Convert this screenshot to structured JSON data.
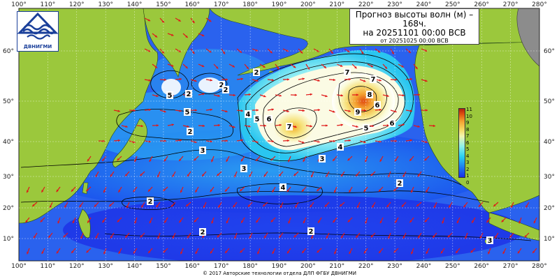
{
  "title": {
    "line1": "Прогноз высоты волн (м) –",
    "line2": "168ч.",
    "line3": "на 20251101 00:00 ВСВ",
    "line4": "от 20251025 00:00 ВСВ"
  },
  "logo": {
    "text": "ДВНИГМИ",
    "icon": "wave-logo-icon"
  },
  "axes": {
    "lon_top": [
      "100°",
      "110°",
      "120°",
      "130°",
      "140°",
      "150°",
      "160°",
      "170°",
      "180°",
      "190°",
      "200°",
      "210°",
      "220°",
      "230°",
      "240°",
      "250°",
      "260°",
      "270°",
      "280°"
    ],
    "lon_bottom": [
      "100°",
      "110°",
      "120°",
      "130°",
      "140°",
      "150°",
      "160°",
      "170°",
      "180°",
      "190°",
      "200°",
      "210°",
      "220°",
      "230°",
      "240°",
      "250°",
      "260°",
      "270°",
      "280°"
    ],
    "lat_left": [
      "60°",
      "50°",
      "40°",
      "30°",
      "20°",
      "10°"
    ],
    "lat_right": [
      "60°",
      "50°",
      "40°",
      "30°",
      "20°",
      "10°"
    ]
  },
  "contour_labels": [
    "5",
    "4",
    "2",
    "5",
    "2",
    "3",
    "3",
    "2",
    "2",
    "2",
    "3",
    "2",
    "7",
    "6",
    "5",
    "4",
    "7",
    "6",
    "9",
    "8",
    "7",
    "6",
    "5",
    "4",
    "3",
    "2",
    "2",
    "2"
  ],
  "legend": {
    "labels": [
      "11",
      "10",
      "9",
      "8",
      "7",
      "6",
      "5",
      "4",
      "3",
      "2",
      "1",
      "0"
    ],
    "colors": [
      "#b3200e",
      "#e05010",
      "#f3a030",
      "#f6d760",
      "#f2f6b0",
      "#8ff0e8",
      "#2ad0f0",
      "#1f7ff0",
      "#1a2eea"
    ]
  },
  "colors": {
    "land": "#9bc83c",
    "ocean": "#2a6ef0",
    "arrow": "#e01818",
    "frame": "#ffffff"
  },
  "copyright": "© 2017 Авторские технологии отдела ДЛП ФГБУ ДВНИГМИ"
}
